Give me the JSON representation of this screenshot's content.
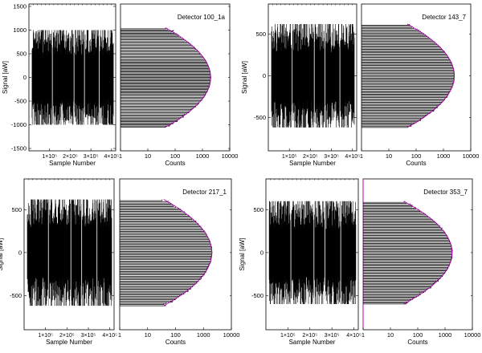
{
  "chart_data": [
    {
      "type": "line",
      "detector": "Detector 100_1a",
      "timeseries": {
        "xlabel": "Sample Number",
        "ylabel": "Signal [aW]",
        "x_ticks": [
          "1×10⁵",
          "2×10⁵",
          "3×10⁵",
          "4×10⁵"
        ],
        "xlim": [
          0,
          420000
        ],
        "ylim": [
          -1550,
          1550
        ],
        "y_ticks": [
          -1500,
          -1000,
          -500,
          0,
          500,
          1000,
          1500
        ],
        "signal_envelope": [
          -1000,
          1000
        ],
        "n_samples": 400000
      },
      "histogram": {
        "xlabel": "Counts",
        "x_scale": "log",
        "xlim": [
          1,
          10000
        ],
        "x_ticks": [
          "1",
          "10",
          "100",
          "1000",
          "10000"
        ],
        "peak_counts": 2000,
        "sigma": 380,
        "y_range": [
          -1050,
          1050
        ],
        "fit_color": "#b000b0"
      }
    },
    {
      "type": "line",
      "detector": "Detector 143_7",
      "timeseries": {
        "xlabel": "Sample Number",
        "ylabel": "Signal [aW]",
        "x_ticks": [
          "1×10⁵",
          "2×10⁵",
          "3×10⁵",
          "4×10⁵"
        ],
        "xlim": [
          0,
          420000
        ],
        "ylim": [
          -900,
          860
        ],
        "y_ticks": [
          -500,
          0,
          500
        ],
        "signal_envelope": [
          -620,
          620
        ],
        "n_samples": 400000
      },
      "histogram": {
        "xlabel": "Counts",
        "x_scale": "log",
        "xlim": [
          1,
          10000
        ],
        "x_ticks": [
          "1",
          "10",
          "100",
          "1000",
          "10000"
        ],
        "peak_counts": 2500,
        "sigma": 220,
        "y_range": [
          -620,
          620
        ],
        "fit_color": "#b000b0"
      }
    },
    {
      "type": "line",
      "detector": "Detector 217_1",
      "timeseries": {
        "xlabel": "Sample Number",
        "ylabel": "Signal [aW]",
        "x_ticks": [
          "1×10⁵",
          "2×10⁵",
          "3×10⁵",
          "4×10⁵"
        ],
        "xlim": [
          0,
          420000
        ],
        "ylim": [
          -900,
          860
        ],
        "y_ticks": [
          -500,
          0,
          500
        ],
        "signal_envelope": [
          -620,
          620
        ],
        "n_samples": 400000
      },
      "histogram": {
        "xlabel": "Counts",
        "x_scale": "log",
        "xlim": [
          1,
          10000
        ],
        "x_ticks": [
          "1",
          "10",
          "100",
          "1000",
          "10000"
        ],
        "peak_counts": 2000,
        "sigma": 220,
        "y_range": [
          -620,
          620
        ],
        "fit_color": "#b000b0"
      }
    },
    {
      "type": "line",
      "detector": "Detector 353_7",
      "timeseries": {
        "xlabel": "Sample Number",
        "ylabel": "Signal [aW]",
        "x_ticks": [
          "1×10⁵",
          "2×10⁵",
          "3×10⁵",
          "4×10⁵"
        ],
        "xlim": [
          0,
          420000
        ],
        "ylim": [
          -900,
          860
        ],
        "y_ticks": [
          -500,
          0,
          500
        ],
        "signal_envelope": [
          -600,
          600
        ],
        "n_samples": 400000
      },
      "histogram": {
        "xlabel": "Counts",
        "x_scale": "log",
        "xlim": [
          1,
          10000
        ],
        "x_ticks": [
          "1",
          "10",
          "100",
          "1000",
          "10000"
        ],
        "peak_counts": 1800,
        "sigma": 210,
        "y_range": [
          -600,
          600
        ],
        "fit_color": "#b000b0"
      }
    }
  ]
}
